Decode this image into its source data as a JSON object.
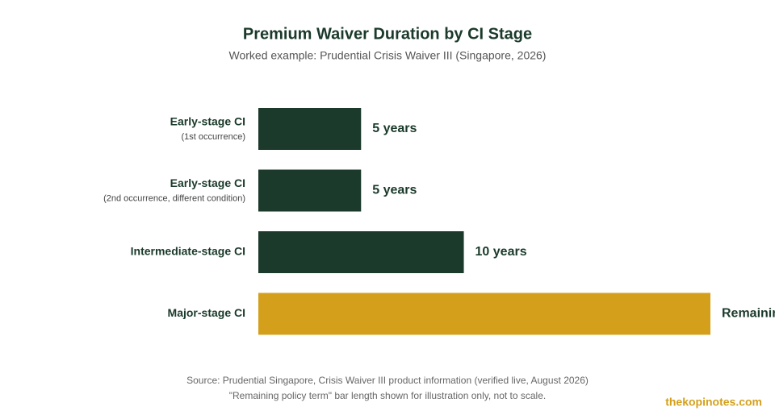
{
  "chart_data": {
    "type": "bar",
    "orientation": "horizontal",
    "title": "Premium Waiver Duration by CI Stage",
    "subtitle": "Worked example: Prudential Crisis Waiver III (Singapore, 2026)",
    "categories": [
      "Early-stage CI",
      "Early-stage CI",
      "Intermediate-stage CI",
      "Major-stage CI"
    ],
    "sublabels": [
      "(1st occurrence)",
      "(2nd occurrence, different condition)",
      null,
      null
    ],
    "values": [
      5,
      5,
      10,
      22
    ],
    "value_labels": [
      "5 years",
      "5 years",
      "10 years",
      "Remaining policy term"
    ],
    "colors": [
      "#1b3a2b",
      "#1b3a2b",
      "#1b3a2b",
      "#d4a01c"
    ],
    "footnotes": [
      "Source: Prudential Singapore, Crisis Waiver III product information (verified live, August 2026)",
      "\"Remaining policy term\" bar length shown for illustration only, not to scale."
    ],
    "watermark": "thekopinotes.com"
  }
}
